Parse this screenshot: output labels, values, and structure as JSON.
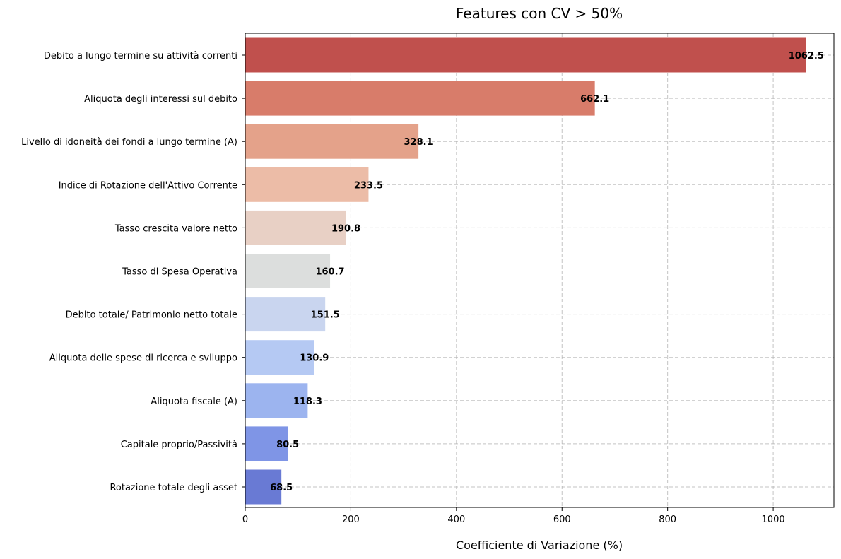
{
  "chart_data": {
    "type": "bar",
    "orientation": "horizontal",
    "title": "Features con CV > 50%",
    "xlabel": "Coefficiente di Variazione (%)",
    "ylabel": "",
    "xlim": [
      0,
      1115
    ],
    "xticks": [
      0,
      200,
      400,
      600,
      800,
      1000
    ],
    "grid": true,
    "categories": [
      "Debito a lungo termine su attività correnti",
      "Aliquota degli interessi sul debito",
      "Livello di idoneità dei fondi a lungo termine (A)",
      "Indice di Rotazione dell'Attivo Corrente",
      "Tasso crescita valore netto",
      "Tasso di Spesa Operativa",
      "Debito totale/ Patrimonio netto totale",
      "Aliquota delle spese di ricerca e sviluppo",
      "Aliquota fiscale (A)",
      "Capitale proprio/Passività",
      "Rotazione totale degli asset"
    ],
    "values": [
      1062.5,
      662.1,
      328.1,
      233.5,
      190.8,
      160.7,
      151.5,
      130.9,
      118.3,
      80.5,
      68.5
    ],
    "value_labels": [
      "1062.5",
      "662.1",
      "328.1",
      "233.5",
      "190.8",
      "160.7",
      "151.5",
      "130.9",
      "118.3",
      "80.5",
      "68.5"
    ],
    "colors": [
      "#c0504d",
      "#d87c6a",
      "#e4a28a",
      "#ecbca7",
      "#e8d0c5",
      "#dcdedd",
      "#c9d5ef",
      "#b5c9f3",
      "#9cb4ef",
      "#7f95e6",
      "#697ad4"
    ]
  }
}
